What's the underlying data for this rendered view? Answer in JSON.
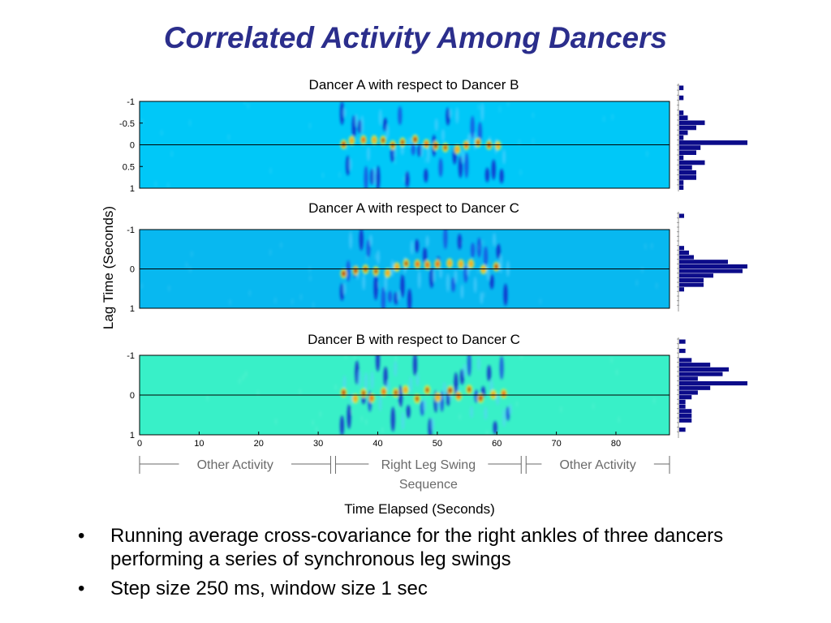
{
  "slide": {
    "title": "Correlated Activity Among Dancers",
    "bullet_mark": "•",
    "bullets": [
      "Running average cross-covariance for the right ankles of three dancers performing a series of synchronous leg swings",
      "Step size 250 ms, window size 1 sec"
    ]
  },
  "chart_data": {
    "type": "heatmap",
    "ylabel": "Lag Time (Seconds)",
    "xlabel": "Time Elapsed (Seconds)",
    "xlim": [
      0,
      89
    ],
    "x_ticks": [
      0,
      10,
      20,
      30,
      40,
      50,
      60,
      70,
      80
    ],
    "x_tick_labels": [
      "0",
      "10",
      "20",
      "30",
      "40",
      "50",
      "60",
      "70",
      "80"
    ],
    "segments": [
      {
        "label": "Other Activity",
        "start": 0,
        "end": 32.5
      },
      {
        "label": "Right Leg Swing\nSequence",
        "start": 32.5,
        "end": 64.5
      },
      {
        "label": "Other Activity",
        "start": 64.5,
        "end": 89
      }
    ],
    "panels": [
      {
        "title": "Dancer A with respect to Dancer B",
        "ylim": [
          -1,
          1
        ],
        "y_ticks": [
          -1,
          -0.5,
          0,
          0.5,
          1
        ],
        "y_tick_labels": [
          "-1",
          "-0.5",
          "0",
          "0.5",
          "1"
        ],
        "background_color": "#00c8f8",
        "histogram": [
          1,
          0,
          1,
          0,
          0,
          1,
          2,
          6,
          4,
          2,
          1,
          16,
          5,
          4,
          1,
          6,
          3,
          4,
          4,
          1,
          1
        ]
      },
      {
        "title": "Dancer A with respect to Dancer C",
        "ylim": [
          -1,
          1
        ],
        "y_ticks": [
          -1,
          0,
          1
        ],
        "y_tick_labels": [
          "-1",
          "0",
          "1"
        ],
        "background_color": "#08b8f0",
        "histogram": [
          1,
          0,
          0,
          0,
          0,
          0,
          0,
          1,
          2,
          3,
          10,
          14,
          13,
          7,
          5,
          5,
          1,
          0,
          0,
          0,
          0
        ]
      },
      {
        "title": "Dancer B with respect to Dancer C",
        "ylim": [
          -1,
          1
        ],
        "y_ticks": [
          -1,
          0,
          1
        ],
        "y_tick_labels": [
          "-1",
          "0",
          "1"
        ],
        "background_color": "#38f0c8",
        "histogram": [
          1,
          0,
          1,
          0,
          2,
          5,
          8,
          7,
          3,
          11,
          5,
          3,
          2,
          1,
          1,
          2,
          2,
          2,
          0,
          1,
          0
        ]
      }
    ]
  }
}
